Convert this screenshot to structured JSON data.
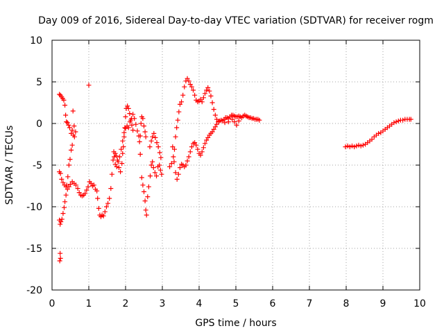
{
  "chart_data": {
    "type": "scatter",
    "title": "Day 009 of 2016, Sidereal Day-to-day VTEC variation (SDTVAR) for receiver rogm",
    "xlabel": "GPS time / hours",
    "ylabel": "SDTVAR / TECUs",
    "xlim": [
      0,
      10
    ],
    "ylim": [
      -20,
      10
    ],
    "xticks": [
      "0",
      "1",
      "2",
      "3",
      "4",
      "5",
      "6",
      "7",
      "8",
      "9",
      "10"
    ],
    "yticks": [
      "-20",
      "-15",
      "-10",
      "-5",
      "0",
      "5",
      "10"
    ],
    "grid": true,
    "marker": "+",
    "marker_color": "#ff0000",
    "series": [
      {
        "points": [
          [
            0.2,
            3.5
          ],
          [
            0.23,
            3.4
          ],
          [
            0.26,
            3.2
          ],
          [
            0.29,
            3.0
          ],
          [
            0.32,
            2.8
          ],
          [
            0.35,
            2.2
          ],
          [
            0.37,
            1.0
          ],
          [
            0.39,
            0.2
          ],
          [
            0.42,
            0.1
          ],
          [
            0.45,
            -0.2
          ],
          [
            0.48,
            -0.5
          ],
          [
            0.52,
            -1.2
          ],
          [
            0.55,
            -0.8
          ],
          [
            0.58,
            -1.4
          ],
          [
            0.61,
            -1.6
          ],
          [
            0.64,
            -1.0
          ],
          [
            0.57,
            1.5
          ],
          [
            0.6,
            -0.3
          ],
          [
            0.55,
            -2.6
          ],
          [
            0.52,
            -3.2
          ],
          [
            0.49,
            -4.3
          ],
          [
            0.46,
            -5.0
          ],
          [
            0.43,
            -6.4
          ],
          [
            0.4,
            -7.4
          ],
          [
            0.38,
            -8.6
          ],
          [
            0.35,
            -9.4
          ],
          [
            0.33,
            -10.1
          ],
          [
            0.3,
            -10.8
          ],
          [
            0.27,
            -11.5
          ],
          [
            0.24,
            -11.8
          ],
          [
            0.22,
            -12.1
          ],
          [
            0.2,
            -11.6
          ],
          [
            0.22,
            -15.6
          ],
          [
            0.23,
            -16.2
          ],
          [
            0.21,
            -16.5
          ],
          [
            0.2,
            -5.8
          ],
          [
            0.23,
            -6.0
          ],
          [
            0.26,
            -6.7
          ],
          [
            0.3,
            -7.1
          ],
          [
            0.34,
            -7.4
          ],
          [
            0.38,
            -7.6
          ],
          [
            0.42,
            -7.9
          ],
          [
            0.46,
            -7.6
          ],
          [
            0.5,
            -7.3
          ],
          [
            0.55,
            -7.0
          ],
          [
            0.6,
            -7.2
          ],
          [
            0.65,
            -7.4
          ],
          [
            0.7,
            -7.8
          ],
          [
            0.74,
            -8.3
          ],
          [
            0.78,
            -8.6
          ],
          [
            0.82,
            -8.7
          ],
          [
            0.86,
            -8.6
          ],
          [
            0.9,
            -8.4
          ],
          [
            0.94,
            -8.0
          ],
          [
            0.98,
            -7.6
          ],
          [
            1.02,
            -7.0
          ],
          [
            1.06,
            -7.2
          ],
          [
            1.1,
            -7.5
          ],
          [
            1.14,
            -7.4
          ],
          [
            1.18,
            -7.9
          ],
          [
            1.22,
            -8.1
          ],
          [
            1.0,
            4.6
          ],
          [
            1.24,
            -9.0
          ],
          [
            1.27,
            -10.2
          ],
          [
            1.3,
            -11.0
          ],
          [
            1.33,
            -11.2
          ],
          [
            1.36,
            -11.0
          ],
          [
            1.4,
            -11.1
          ],
          [
            1.44,
            -10.6
          ],
          [
            1.48,
            -10.0
          ],
          [
            1.52,
            -9.6
          ],
          [
            1.56,
            -9.0
          ],
          [
            1.6,
            -7.8
          ],
          [
            1.63,
            -6.1
          ],
          [
            1.66,
            -4.4
          ],
          [
            1.69,
            -4.0
          ],
          [
            1.72,
            -3.6
          ],
          [
            1.75,
            -3.9
          ],
          [
            1.78,
            -4.4
          ],
          [
            1.82,
            -5.3
          ],
          [
            1.86,
            -5.8
          ],
          [
            1.9,
            -4.8
          ],
          [
            1.92,
            -3.6
          ],
          [
            1.94,
            -2.8
          ],
          [
            1.96,
            -1.6
          ],
          [
            1.98,
            -0.5
          ],
          [
            2.0,
            0.8
          ],
          [
            2.02,
            1.8
          ],
          [
            2.05,
            2.1
          ],
          [
            2.08,
            1.8
          ],
          [
            2.11,
            1.2
          ],
          [
            2.14,
            0.4
          ],
          [
            2.17,
            -0.2
          ],
          [
            2.2,
            -0.8
          ],
          [
            1.68,
            -3.4
          ],
          [
            1.72,
            -4.9
          ],
          [
            1.76,
            -5.2
          ],
          [
            1.8,
            -4.6
          ],
          [
            1.84,
            -4.0
          ],
          [
            1.88,
            -3.1
          ],
          [
            1.92,
            -2.1
          ],
          [
            1.96,
            -1.1
          ],
          [
            2.0,
            -0.6
          ],
          [
            2.04,
            -0.3
          ],
          [
            2.08,
            -0.5
          ],
          [
            2.12,
            0.2
          ],
          [
            2.16,
            0.6
          ],
          [
            2.2,
            1.1
          ],
          [
            2.24,
            0.6
          ],
          [
            2.28,
            -0.1
          ],
          [
            2.32,
            -0.9
          ],
          [
            2.36,
            -1.5
          ],
          [
            2.38,
            -2.2
          ],
          [
            2.4,
            -1.5
          ],
          [
            2.42,
            0.0
          ],
          [
            2.44,
            0.8
          ],
          [
            2.47,
            0.6
          ],
          [
            2.5,
            -0.3
          ],
          [
            2.53,
            -1.0
          ],
          [
            2.55,
            -1.6
          ],
          [
            2.4,
            -3.7
          ],
          [
            2.44,
            -6.5
          ],
          [
            2.47,
            -7.4
          ],
          [
            2.5,
            -8.2
          ],
          [
            2.53,
            -9.3
          ],
          [
            2.55,
            -10.4
          ],
          [
            2.57,
            -11.0
          ],
          [
            2.6,
            -8.8
          ],
          [
            2.63,
            -7.6
          ],
          [
            2.67,
            -6.3
          ],
          [
            2.7,
            -5.0
          ],
          [
            2.73,
            -4.6
          ],
          [
            2.76,
            -5.3
          ],
          [
            2.8,
            -5.9
          ],
          [
            2.84,
            -6.3
          ],
          [
            2.88,
            -5.2
          ],
          [
            2.92,
            -5.0
          ],
          [
            2.95,
            -5.6
          ],
          [
            2.98,
            -6.1
          ],
          [
            2.66,
            -2.8
          ],
          [
            2.7,
            -2.1
          ],
          [
            2.73,
            -1.6
          ],
          [
            2.77,
            -1.2
          ],
          [
            2.81,
            -1.7
          ],
          [
            2.85,
            -2.3
          ],
          [
            2.89,
            -2.8
          ],
          [
            2.93,
            -3.5
          ],
          [
            2.96,
            -4.1
          ],
          [
            3.2,
            -5.2
          ],
          [
            3.25,
            -4.8
          ],
          [
            3.3,
            -4.0
          ],
          [
            3.33,
            -3.1
          ],
          [
            3.36,
            -1.6
          ],
          [
            3.39,
            -0.5
          ],
          [
            3.42,
            0.4
          ],
          [
            3.45,
            1.4
          ],
          [
            3.48,
            2.3
          ],
          [
            3.52,
            2.6
          ],
          [
            3.56,
            3.4
          ],
          [
            3.6,
            4.4
          ],
          [
            3.64,
            5.1
          ],
          [
            3.68,
            5.4
          ],
          [
            3.72,
            5.1
          ],
          [
            3.76,
            4.7
          ],
          [
            3.8,
            4.4
          ],
          [
            3.84,
            4.0
          ],
          [
            3.88,
            3.4
          ],
          [
            3.92,
            2.8
          ],
          [
            3.96,
            2.6
          ],
          [
            4.0,
            2.7
          ],
          [
            4.04,
            2.9
          ],
          [
            4.08,
            2.6
          ],
          [
            4.12,
            3.1
          ],
          [
            4.16,
            3.6
          ],
          [
            4.2,
            4.0
          ],
          [
            4.24,
            4.3
          ],
          [
            4.28,
            3.9
          ],
          [
            4.32,
            3.3
          ],
          [
            4.36,
            2.5
          ],
          [
            4.4,
            1.7
          ],
          [
            4.44,
            1.0
          ],
          [
            4.48,
            0.5
          ],
          [
            3.28,
            -2.8
          ],
          [
            3.32,
            -4.6
          ],
          [
            3.36,
            -5.9
          ],
          [
            3.4,
            -6.7
          ],
          [
            3.44,
            -6.1
          ],
          [
            3.48,
            -5.3
          ],
          [
            3.52,
            -4.9
          ],
          [
            3.56,
            -5.0
          ],
          [
            3.6,
            -5.2
          ],
          [
            3.64,
            -5.0
          ],
          [
            3.68,
            -4.5
          ],
          [
            3.72,
            -4.0
          ],
          [
            3.76,
            -3.4
          ],
          [
            3.8,
            -2.8
          ],
          [
            3.84,
            -2.4
          ],
          [
            3.88,
            -2.3
          ],
          [
            3.92,
            -2.6
          ],
          [
            3.96,
            -3.1
          ],
          [
            4.0,
            -3.6
          ],
          [
            4.04,
            -3.8
          ],
          [
            4.08,
            -3.4
          ],
          [
            4.12,
            -2.9
          ],
          [
            4.16,
            -2.4
          ],
          [
            4.2,
            -2.0
          ],
          [
            4.24,
            -1.7
          ],
          [
            4.28,
            -1.4
          ],
          [
            4.32,
            -1.2
          ],
          [
            4.36,
            -1.0
          ],
          [
            4.4,
            -0.7
          ],
          [
            4.44,
            -0.4
          ],
          [
            4.48,
            -0.1
          ],
          [
            4.52,
            0.2
          ],
          [
            4.56,
            0.3
          ],
          [
            4.6,
            0.4
          ],
          [
            4.64,
            0.3
          ],
          [
            4.68,
            0.5
          ],
          [
            4.72,
            0.7
          ],
          [
            4.76,
            0.7
          ],
          [
            4.8,
            0.6
          ],
          [
            4.84,
            0.8
          ],
          [
            4.88,
            1.0
          ],
          [
            4.92,
            1.0
          ],
          [
            4.96,
            0.9
          ],
          [
            5.0,
            0.8
          ],
          [
            5.04,
            0.8
          ],
          [
            5.08,
            0.9
          ],
          [
            5.12,
            0.8
          ],
          [
            5.16,
            0.7
          ],
          [
            5.2,
            0.9
          ],
          [
            5.24,
            1.0
          ],
          [
            5.28,
            0.9
          ],
          [
            5.32,
            0.8
          ],
          [
            5.36,
            0.7
          ],
          [
            5.4,
            0.7
          ],
          [
            5.44,
            0.6
          ],
          [
            5.48,
            0.6
          ],
          [
            5.52,
            0.5
          ],
          [
            5.56,
            0.5
          ],
          [
            5.6,
            0.5
          ],
          [
            5.64,
            0.4
          ],
          [
            4.9,
            0.5
          ],
          [
            4.96,
            0.2
          ],
          [
            5.02,
            -0.2
          ],
          [
            5.08,
            0.3
          ],
          [
            4.7,
            0.1
          ],
          [
            4.8,
            0.2
          ],
          [
            7.98,
            -2.8
          ],
          [
            8.04,
            -2.7
          ],
          [
            8.1,
            -2.8
          ],
          [
            8.16,
            -2.7
          ],
          [
            8.22,
            -2.8
          ],
          [
            8.28,
            -2.7
          ],
          [
            8.34,
            -2.6
          ],
          [
            8.4,
            -2.7
          ],
          [
            8.46,
            -2.6
          ],
          [
            8.52,
            -2.5
          ],
          [
            8.58,
            -2.3
          ],
          [
            8.64,
            -2.1
          ],
          [
            8.7,
            -1.9
          ],
          [
            8.76,
            -1.6
          ],
          [
            8.82,
            -1.4
          ],
          [
            8.88,
            -1.2
          ],
          [
            8.94,
            -1.1
          ],
          [
            9.0,
            -0.9
          ],
          [
            9.06,
            -0.7
          ],
          [
            9.12,
            -0.5
          ],
          [
            9.18,
            -0.3
          ],
          [
            9.24,
            -0.1
          ],
          [
            9.3,
            0.1
          ],
          [
            9.36,
            0.2
          ],
          [
            9.42,
            0.3
          ],
          [
            9.48,
            0.4
          ],
          [
            9.54,
            0.4
          ],
          [
            9.6,
            0.5
          ],
          [
            9.66,
            0.5
          ],
          [
            9.72,
            0.5
          ],
          [
            9.76,
            0.5
          ]
        ]
      }
    ]
  }
}
